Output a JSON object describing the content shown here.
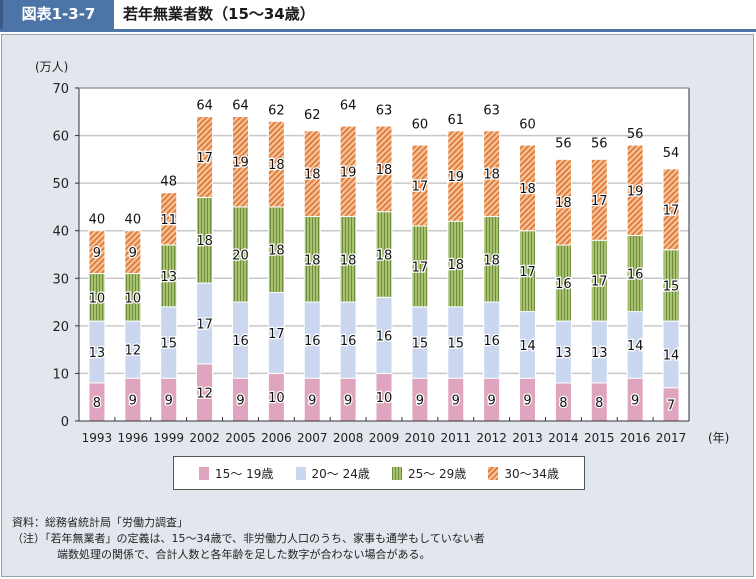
{
  "header": {
    "figure_number": "図表1-3-7",
    "title": "若年無業者数（15～34歳）"
  },
  "colors": {
    "header_bg": "#4d74a6",
    "panel_bg": "#e2e7ee",
    "s1": "#dfa5be",
    "s2": "#cad7ee",
    "s3": "#9fbd6a",
    "s3_stripe": "#6d8a3a",
    "s4": "#f0a878",
    "s4_stripe": "#d9742f"
  },
  "chart_data": {
    "type": "bar",
    "stacked": true,
    "title": "若年無業者数（15～34歳）",
    "ylabel": "(万人)",
    "xlabel": "(年)",
    "ylim": [
      0,
      70
    ],
    "yticks": [
      0,
      10,
      20,
      30,
      40,
      50,
      60,
      70
    ],
    "grid": true,
    "legend_position": "bottom",
    "categories": [
      "1993",
      "1996",
      "1999",
      "2002",
      "2005",
      "2006",
      "2007",
      "2008",
      "2009",
      "2010",
      "2011",
      "2012",
      "2013",
      "2014",
      "2015",
      "2016",
      "2017"
    ],
    "series": [
      {
        "name": "15～ 19歳",
        "values": [
          8,
          9,
          9,
          12,
          9,
          10,
          9,
          9,
          10,
          9,
          9,
          9,
          9,
          8,
          8,
          9,
          7
        ]
      },
      {
        "name": "20～ 24歳",
        "values": [
          13,
          12,
          15,
          17,
          16,
          17,
          16,
          16,
          16,
          15,
          15,
          16,
          14,
          13,
          13,
          14,
          14
        ]
      },
      {
        "name": "25～ 29歳",
        "values": [
          10,
          10,
          13,
          18,
          20,
          18,
          18,
          18,
          18,
          17,
          18,
          18,
          17,
          16,
          17,
          16,
          15
        ]
      },
      {
        "name": "30～34歳",
        "values": [
          9,
          9,
          11,
          17,
          19,
          18,
          18,
          19,
          18,
          17,
          19,
          18,
          18,
          18,
          17,
          19,
          17
        ]
      }
    ],
    "totals": [
      40,
      40,
      48,
      64,
      64,
      62,
      62,
      64,
      63,
      60,
      61,
      63,
      60,
      56,
      56,
      56,
      54
    ]
  },
  "notes": {
    "source": "資料：総務省統計局「労働力調査」",
    "note_label": "（注）",
    "note1": "「若年無業者」の定義は、15～34歳で、非労働力人口のうち、家事も通学もしていない者",
    "note2": "端数処理の関係で、合計人数と各年齢を足した数字が合わない場合がある。"
  }
}
